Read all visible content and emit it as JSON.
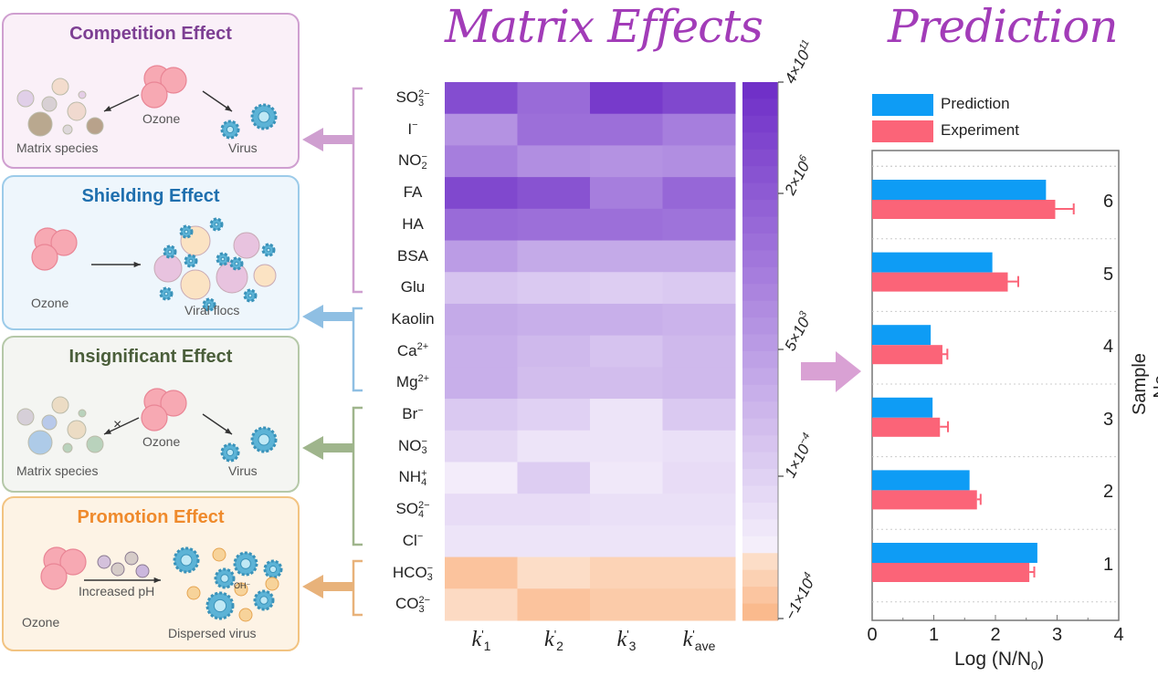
{
  "panels": [
    {
      "title": "Competition Effect",
      "title_color": "#7d3f93",
      "border": "#cf9fd0",
      "bg": "#faf0f8",
      "labels": [
        "Matrix species",
        "Ozone",
        "Virus"
      ]
    },
    {
      "title": "Shielding Effect",
      "title_color": "#1f6fae",
      "border": "#9ccbe9",
      "bg": "#eef6fc",
      "labels": [
        "Ozone",
        "Viral flocs"
      ]
    },
    {
      "title": "Insignificant Effect",
      "title_color": "#4a5e3a",
      "border": "#b5c8a8",
      "bg": "#f4f5f2",
      "labels": [
        "Matrix species",
        "Ozone",
        "Virus"
      ]
    },
    {
      "title": "Promotion Effect",
      "title_color": "#ef8a2c",
      "border": "#f2c381",
      "bg": "#fdf3e5",
      "labels": [
        "Ozone",
        "Increased pH",
        "Dispersed virus"
      ],
      "ion_label": "OH⁻"
    }
  ],
  "bracket_colors": [
    "#cf9fd0",
    "#8fbfe3",
    "#9fb58c",
    "#e8b27a"
  ],
  "heatmap": {
    "title": "Matrix Effects",
    "columns": [
      {
        "base": "k",
        "prime": "'",
        "sub": "1"
      },
      {
        "base": "k",
        "prime": "'",
        "sub": "2"
      },
      {
        "base": "k",
        "prime": "'",
        "sub": "3"
      },
      {
        "base": "k",
        "prime": "'",
        "sub": "ave"
      }
    ],
    "rows": [
      {
        "base": "SO",
        "sub": "3",
        "sup": "2−",
        "values": [
          0.85,
          0.7,
          0.95,
          0.88
        ]
      },
      {
        "base": "I",
        "sub": "",
        "sup": "−",
        "values": [
          0.5,
          0.68,
          0.68,
          0.6
        ]
      },
      {
        "base": "NO",
        "sub": "2",
        "sup": "−",
        "values": [
          0.6,
          0.52,
          0.5,
          0.52
        ]
      },
      {
        "base": "FA",
        "sub": "",
        "sup": "",
        "values": [
          0.88,
          0.82,
          0.6,
          0.72
        ]
      },
      {
        "base": "HA",
        "sub": "",
        "sup": "",
        "values": [
          0.7,
          0.68,
          0.68,
          0.66
        ]
      },
      {
        "base": "BSA",
        "sub": "",
        "sup": "",
        "values": [
          0.45,
          0.38,
          0.38,
          0.38
        ]
      },
      {
        "base": "Glu",
        "sub": "",
        "sup": "",
        "values": [
          0.25,
          0.22,
          0.2,
          0.22
        ]
      },
      {
        "base": "Kaolin",
        "sub": "",
        "sup": "",
        "values": [
          0.38,
          0.35,
          0.35,
          0.33
        ]
      },
      {
        "base": "Ca",
        "sub": "",
        "sup": "2+",
        "values": [
          0.35,
          0.3,
          0.25,
          0.3
        ]
      },
      {
        "base": "Mg",
        "sub": "",
        "sup": "2+",
        "values": [
          0.35,
          0.28,
          0.28,
          0.3
        ]
      },
      {
        "base": "Br",
        "sub": "",
        "sup": "−",
        "values": [
          0.22,
          0.18,
          0.08,
          0.22
        ]
      },
      {
        "base": "NO",
        "sub": "3",
        "sup": "−",
        "values": [
          0.15,
          0.08,
          0.08,
          0.1
        ]
      },
      {
        "base": "NH",
        "sub": "4",
        "sup": "+",
        "values": [
          0.04,
          0.2,
          0.06,
          0.12
        ]
      },
      {
        "base": "SO",
        "sub": "4",
        "sup": "2−",
        "values": [
          0.12,
          0.12,
          0.1,
          0.1
        ]
      },
      {
        "base": "Cl",
        "sub": "",
        "sup": "−",
        "values": [
          0.08,
          0.08,
          0.08,
          0.08
        ]
      },
      {
        "base": "HCO",
        "sub": "3",
        "sup": "−",
        "values": [
          -0.8,
          -0.3,
          -0.5,
          -0.5
        ]
      },
      {
        "base": "CO",
        "sub": "3",
        "sup": "2−",
        "values": [
          -0.35,
          -0.8,
          -0.65,
          -0.65
        ]
      }
    ],
    "colorbar": {
      "ticks": [
        {
          "m": "4×10",
          "e": "11"
        },
        {
          "m": "2×10",
          "e": "6"
        },
        {
          "m": "5×10",
          "e": "3"
        },
        {
          "m": "1×10",
          "e": "−4"
        },
        {
          "m": "−1×10",
          "e": "4"
        }
      ],
      "purple_max": "#7030c8",
      "purple_min": "#f8f4fc",
      "orange_min": "#fdece0",
      "orange_max": "#fab98c"
    }
  },
  "chart_data": {
    "type": "bar",
    "orientation": "horizontal",
    "title": "Prediction",
    "categories": [
      "1",
      "2",
      "3",
      "4",
      "5",
      "6"
    ],
    "series": [
      {
        "name": "Prediction",
        "color": "#0e9cf5",
        "values": [
          2.68,
          1.58,
          0.98,
          0.95,
          1.95,
          2.82
        ]
      },
      {
        "name": "Experiment",
        "color": "#fb6478",
        "values": [
          2.55,
          1.7,
          1.1,
          1.14,
          2.2,
          2.97
        ],
        "errors": [
          0.08,
          0.06,
          0.13,
          0.08,
          0.17,
          0.3
        ]
      }
    ],
    "xlabel": {
      "base": "Log (N/N",
      "sub": "0",
      "tail": ")"
    },
    "ylabel": "Sample No.",
    "xlim": [
      0,
      4
    ],
    "xticks": [
      "0",
      "1",
      "2",
      "3",
      "4"
    ],
    "grid": "horizontal dashed",
    "legend": "top-left"
  }
}
